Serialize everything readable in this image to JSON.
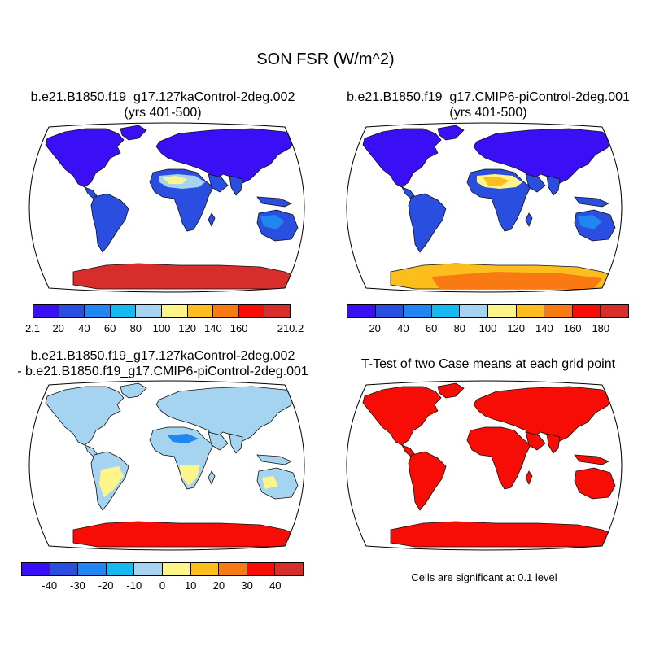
{
  "title": "SON FSR (W/m^2)",
  "panels": {
    "p1": {
      "title_line1": "b.e21.B1850.f19_g17.127kaControl-2deg.002",
      "title_line2": "(yrs 401-500)"
    },
    "p2": {
      "title_line1": "b.e21.B1850.f19_g17.CMIP6-piControl-2deg.001",
      "title_line2": "(yrs 401-500)"
    },
    "p3": {
      "title_line1": "b.e21.B1850.f19_g17.127kaControl-2deg.002",
      "title_line2": "- b.e21.B1850.f19_g17.CMIP6-piControl-2deg.001"
    },
    "p4": {
      "title_line1": "T-Test of two Case means at each grid point",
      "note": "Cells are significant at 0.1 level"
    }
  },
  "colorbars": {
    "abs_colors": [
      "#3b0ff5",
      "#2a4fe0",
      "#1f86f2",
      "#17baf0",
      "#a4d4ef",
      "#fef58a",
      "#fcbe1c",
      "#f97a12",
      "#f70d05",
      "#d72d2b"
    ],
    "cb1_labels": [
      "2.1",
      "20",
      "40",
      "60",
      "80",
      "100",
      "120",
      "140",
      "160",
      "210.2"
    ],
    "cb2_labels": [
      "20",
      "40",
      "60",
      "80",
      "100",
      "120",
      "140",
      "160",
      "180"
    ],
    "cb3_labels": [
      "-40",
      "-30",
      "-20",
      "-10",
      "0",
      "10",
      "20",
      "30",
      "40"
    ]
  },
  "map_colors": {
    "ocean": "#ffffff",
    "land_blue": "#2a4fe0",
    "land_dark": "#3b0ff5",
    "land_mid": "#1f86f2",
    "desert_a": "#a4d4ef",
    "desert_b": "#fef58a",
    "desert_c": "#fcbe1c",
    "antarctica_p1": "#d72d2b",
    "antarctica_p2_a": "#fcbe1c",
    "antarctica_p2_b": "#f97a12",
    "diff_land": "#a4d4ef",
    "diff_pos": "#fef58a",
    "diff_neg": "#1f86f2",
    "diff_antarctica": "#f70d05",
    "sig": "#f70d05"
  }
}
